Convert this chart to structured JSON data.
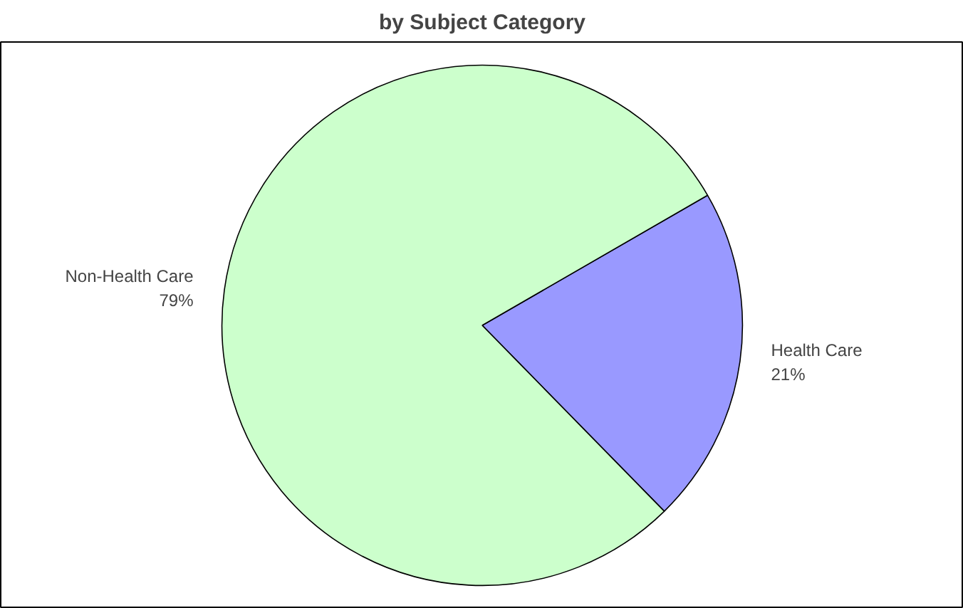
{
  "chart_data": {
    "type": "pie",
    "title": "by Subject Category",
    "categories": [
      "Health Care",
      "Non-Health Care"
    ],
    "values": [
      21,
      79
    ],
    "colors": [
      "#9999ff",
      "#ccffcc"
    ],
    "value_labels": [
      "21%",
      "79%"
    ]
  }
}
